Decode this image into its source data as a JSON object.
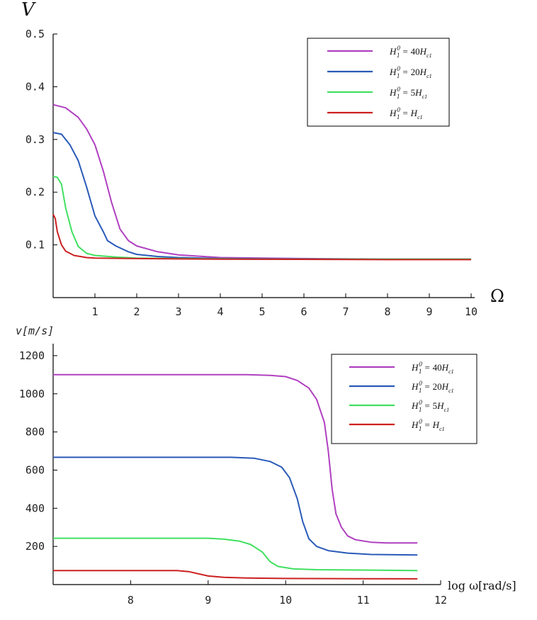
{
  "chart_data": [
    {
      "type": "line",
      "ylabel": "V",
      "xlabel": "Ω",
      "xlim": [
        0,
        10
      ],
      "ylim": [
        0,
        0.5
      ],
      "x_ticks": [
        "1",
        "2",
        "3",
        "4",
        "5",
        "6",
        "7",
        "8",
        "9",
        "10"
      ],
      "y_ticks": [
        "0.1",
        "0.2",
        "0.3",
        "0.4",
        "0.5"
      ],
      "legend_position": "top-right",
      "grid": false,
      "series": [
        {
          "name": "H₁⁰ = 40H꜀₁",
          "color": "#b040c0",
          "points": [
            [
              0,
              0.366
            ],
            [
              0.3,
              0.36
            ],
            [
              0.6,
              0.342
            ],
            [
              0.8,
              0.32
            ],
            [
              1.0,
              0.29
            ],
            [
              1.2,
              0.24
            ],
            [
              1.4,
              0.18
            ],
            [
              1.6,
              0.13
            ],
            [
              1.8,
              0.108
            ],
            [
              2.0,
              0.098
            ],
            [
              2.5,
              0.087
            ],
            [
              3.0,
              0.081
            ],
            [
              4.0,
              0.076
            ],
            [
              5.0,
              0.075
            ],
            [
              6.0,
              0.074
            ],
            [
              8.0,
              0.073
            ],
            [
              10.0,
              0.073
            ]
          ]
        },
        {
          "name": "H₁⁰ = 20H꜀₁",
          "color": "#2a5ab8",
          "points": [
            [
              0,
              0.313
            ],
            [
              0.2,
              0.31
            ],
            [
              0.4,
              0.29
            ],
            [
              0.6,
              0.26
            ],
            [
              0.8,
              0.21
            ],
            [
              1.0,
              0.155
            ],
            [
              1.2,
              0.125
            ],
            [
              1.3,
              0.108
            ],
            [
              1.5,
              0.098
            ],
            [
              1.8,
              0.087
            ],
            [
              2.0,
              0.082
            ],
            [
              2.5,
              0.078
            ],
            [
              3.0,
              0.076
            ],
            [
              4.0,
              0.074
            ],
            [
              6.0,
              0.073
            ],
            [
              10.0,
              0.073
            ]
          ]
        },
        {
          "name": "H₁⁰ = 5H꜀₁",
          "color": "#40e060",
          "points": [
            [
              0,
              0.23
            ],
            [
              0.1,
              0.228
            ],
            [
              0.2,
              0.215
            ],
            [
              0.3,
              0.17
            ],
            [
              0.45,
              0.125
            ],
            [
              0.6,
              0.097
            ],
            [
              0.8,
              0.084
            ],
            [
              1.0,
              0.08
            ],
            [
              1.5,
              0.077
            ],
            [
              2.0,
              0.075
            ],
            [
              3.0,
              0.074
            ],
            [
              5.0,
              0.073
            ],
            [
              10.0,
              0.073
            ]
          ]
        },
        {
          "name": "H₁⁰ = H꜀₁",
          "color": "#cc2020",
          "points": [
            [
              0,
              0.158
            ],
            [
              0.05,
              0.15
            ],
            [
              0.1,
              0.125
            ],
            [
              0.2,
              0.1
            ],
            [
              0.3,
              0.088
            ],
            [
              0.5,
              0.08
            ],
            [
              0.8,
              0.076
            ],
            [
              1.0,
              0.075
            ],
            [
              2.0,
              0.074
            ],
            [
              4.0,
              0.073
            ],
            [
              8.0,
              0.072
            ],
            [
              10.0,
              0.072
            ]
          ]
        }
      ]
    },
    {
      "type": "line",
      "ylabel": "v[m/s]",
      "xlabel": "log ω[rad/s]",
      "xlim": [
        7,
        12
      ],
      "ylim": [
        0,
        1300
      ],
      "x_ticks": [
        "8",
        "9",
        "10",
        "11",
        "12"
      ],
      "y_ticks": [
        "200",
        "400",
        "600",
        "800",
        "1000",
        "1200"
      ],
      "legend_position": "top-right",
      "grid": false,
      "series": [
        {
          "name": "H₁⁰ = 40H꜀₁",
          "color": "#b040c0",
          "points": [
            [
              7.0,
              1100
            ],
            [
              9.5,
              1100
            ],
            [
              9.8,
              1097
            ],
            [
              10.0,
              1090
            ],
            [
              10.15,
              1070
            ],
            [
              10.3,
              1030
            ],
            [
              10.4,
              970
            ],
            [
              10.5,
              850
            ],
            [
              10.55,
              700
            ],
            [
              10.6,
              500
            ],
            [
              10.65,
              370
            ],
            [
              10.72,
              300
            ],
            [
              10.8,
              255
            ],
            [
              10.9,
              235
            ],
            [
              11.1,
              222
            ],
            [
              11.3,
              218
            ],
            [
              11.7,
              218
            ]
          ]
        },
        {
          "name": "H₁⁰ = 20H꜀₁",
          "color": "#2a5ab8",
          "points": [
            [
              7.0,
              667
            ],
            [
              9.3,
              667
            ],
            [
              9.6,
              662
            ],
            [
              9.8,
              645
            ],
            [
              9.95,
              615
            ],
            [
              10.05,
              560
            ],
            [
              10.15,
              450
            ],
            [
              10.22,
              330
            ],
            [
              10.3,
              240
            ],
            [
              10.4,
              200
            ],
            [
              10.55,
              178
            ],
            [
              10.8,
              165
            ],
            [
              11.1,
              158
            ],
            [
              11.7,
              155
            ]
          ]
        },
        {
          "name": "H₁⁰ = 5H꜀₁",
          "color": "#40e060",
          "points": [
            [
              7.0,
              243
            ],
            [
              9.0,
              243
            ],
            [
              9.2,
              238
            ],
            [
              9.4,
              228
            ],
            [
              9.55,
              210
            ],
            [
              9.7,
              170
            ],
            [
              9.8,
              120
            ],
            [
              9.9,
              95
            ],
            [
              10.1,
              82
            ],
            [
              10.4,
              78
            ],
            [
              11.0,
              76
            ],
            [
              11.7,
              73
            ]
          ]
        },
        {
          "name": "H₁⁰ = H꜀₁",
          "color": "#cc2020",
          "points": [
            [
              7.0,
              73
            ],
            [
              8.6,
              73
            ],
            [
              8.75,
              68
            ],
            [
              9.0,
              45
            ],
            [
              9.2,
              38
            ],
            [
              9.5,
              34
            ],
            [
              10.0,
              32
            ],
            [
              11.0,
              31
            ],
            [
              11.7,
              30
            ]
          ]
        }
      ]
    }
  ],
  "legend_math": [
    {
      "H": "H",
      "sub": "1",
      "sup": "0",
      "eq": "=",
      "coef": "40",
      "H2": "H",
      "sub2": "c1"
    },
    {
      "H": "H",
      "sub": "1",
      "sup": "0",
      "eq": "=",
      "coef": "20",
      "H2": "H",
      "sub2": "c1"
    },
    {
      "H": "H",
      "sub": "1",
      "sup": "0",
      "eq": "=",
      "coef": "5",
      "H2": "H",
      "sub2": "c1"
    },
    {
      "H": "H",
      "sub": "1",
      "sup": "0",
      "eq": "=",
      "coef": "",
      "H2": "H",
      "sub2": "c1"
    }
  ]
}
